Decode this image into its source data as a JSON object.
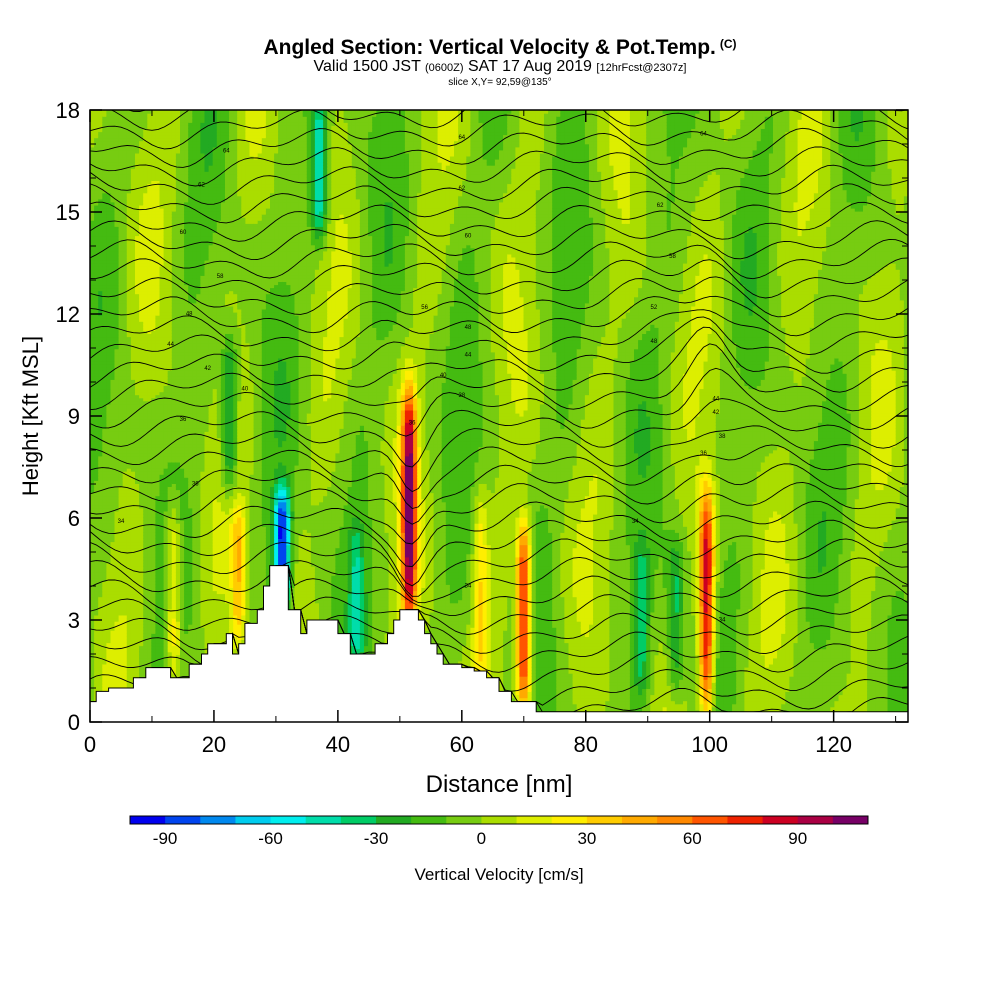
{
  "title": {
    "main": "Angled Section: Vertical Velocity & Pot.Temp.",
    "units_tag": "(C)",
    "valid_prefix": "Valid 1500 JST",
    "utc": "(0600Z)",
    "valid_date": "SAT 17 Aug 2019",
    "forecast": "[12hrFcst@2307z]",
    "slice": "slice X,Y= 92,59@135°"
  },
  "chart_data": {
    "type": "heatmap",
    "xlabel": "Distance [nm]",
    "ylabel": "Height [Kft MSL]",
    "xlim": [
      0,
      132
    ],
    "ylim": [
      0,
      18
    ],
    "x_ticks": [
      0,
      20,
      40,
      60,
      80,
      100,
      120
    ],
    "y_ticks": [
      0,
      3,
      6,
      9,
      12,
      15,
      18
    ],
    "colorbar": {
      "label": "Vertical Velocity [cm/s]",
      "min": -100,
      "max": 110,
      "step": 10,
      "tick_values": [
        -90,
        -60,
        -30,
        0,
        30,
        60,
        90
      ],
      "colors": [
        "#0000ee",
        "#0044ee",
        "#0088ee",
        "#00ccee",
        "#00eeee",
        "#00ddaa",
        "#00cc66",
        "#22aa22",
        "#44bb11",
        "#77cc11",
        "#aadd00",
        "#ddee00",
        "#ffee00",
        "#ffcc00",
        "#ffaa00",
        "#ff8800",
        "#ff5500",
        "#ee2200",
        "#cc0022",
        "#aa0044",
        "#770066"
      ]
    },
    "terrain_kft": [
      [
        0,
        0.6
      ],
      [
        1,
        0.9
      ],
      [
        3,
        1.0
      ],
      [
        5,
        1.0
      ],
      [
        7,
        1.3
      ],
      [
        9,
        1.6
      ],
      [
        12,
        1.6
      ],
      [
        13,
        1.3
      ],
      [
        15,
        1.3
      ],
      [
        16,
        1.7
      ],
      [
        18,
        2.0
      ],
      [
        19,
        2.3
      ],
      [
        21,
        2.3
      ],
      [
        22,
        2.6
      ],
      [
        23,
        2.0
      ],
      [
        24,
        2.3
      ],
      [
        25,
        2.9
      ],
      [
        27,
        3.3
      ],
      [
        28,
        4.0
      ],
      [
        29,
        4.6
      ],
      [
        31,
        4.6
      ],
      [
        32,
        3.3
      ],
      [
        34,
        2.6
      ],
      [
        35,
        3.0
      ],
      [
        38,
        3.0
      ],
      [
        40,
        2.6
      ],
      [
        42,
        2.0
      ],
      [
        45,
        2.0
      ],
      [
        46,
        2.3
      ],
      [
        48,
        2.6
      ],
      [
        49,
        3.0
      ],
      [
        50,
        3.3
      ],
      [
        52,
        3.3
      ],
      [
        53,
        3.0
      ],
      [
        54,
        2.6
      ],
      [
        55,
        2.3
      ],
      [
        56,
        2.0
      ],
      [
        57,
        1.7
      ],
      [
        59,
        1.7
      ],
      [
        60,
        1.6
      ],
      [
        62,
        1.5
      ],
      [
        64,
        1.3
      ],
      [
        66,
        0.9
      ],
      [
        68,
        0.6
      ],
      [
        70,
        0.6
      ],
      [
        72,
        0.3
      ],
      [
        75,
        0.3
      ],
      [
        132,
        0.3
      ]
    ],
    "updraft_cores_cm_s": [
      {
        "x": 51.5,
        "z_top": 9.5,
        "z_bottom": 3.3,
        "max": 100
      },
      {
        "x": 70.0,
        "z_top": 5.5,
        "z_bottom": 0.6,
        "max": 90
      },
      {
        "x": 99.5,
        "z_top": 6.5,
        "z_bottom": 0.3,
        "max": 90
      },
      {
        "x": 13.5,
        "z_top": 6.0,
        "z_bottom": 1.5,
        "max": 40
      },
      {
        "x": 24.0,
        "z_top": 6.0,
        "z_bottom": 2.5,
        "max": 40
      },
      {
        "x": 63.0,
        "z_top": 6.5,
        "z_bottom": 1.5,
        "max": 30
      }
    ],
    "downdraft_cores_cm_s": [
      {
        "x": 31.0,
        "z_top": 6.5,
        "z_bottom": 3.5,
        "min": -90
      },
      {
        "x": 37.0,
        "z_top": 18.0,
        "z_bottom": 14.5,
        "min": -50
      },
      {
        "x": 22.5,
        "z_top": 11.0,
        "z_bottom": 7.0,
        "min": -40
      },
      {
        "x": 89.0,
        "z_top": 5.0,
        "z_bottom": 1.0,
        "min": -30
      },
      {
        "x": 94.5,
        "z_top": 5.0,
        "z_bottom": 1.0,
        "min": -30
      },
      {
        "x": 43.0,
        "z_top": 5.5,
        "z_bottom": 2.0,
        "min": -30
      }
    ],
    "isentrope_labels_c": [
      {
        "x": 22,
        "z": 16.8,
        "text": "64"
      },
      {
        "x": 60,
        "z": 17.2,
        "text": "64"
      },
      {
        "x": 99,
        "z": 17.3,
        "text": "64"
      },
      {
        "x": 18,
        "z": 15.8,
        "text": "62"
      },
      {
        "x": 60,
        "z": 15.7,
        "text": "62"
      },
      {
        "x": 92,
        "z": 15.2,
        "text": "62"
      },
      {
        "x": 15,
        "z": 14.4,
        "text": "60"
      },
      {
        "x": 61,
        "z": 14.3,
        "text": "60"
      },
      {
        "x": 94,
        "z": 13.7,
        "text": "58"
      },
      {
        "x": 21,
        "z": 13.1,
        "text": "58"
      },
      {
        "x": 54,
        "z": 12.2,
        "text": "56"
      },
      {
        "x": 91,
        "z": 12.2,
        "text": "52"
      },
      {
        "x": 16,
        "z": 12.0,
        "text": "48"
      },
      {
        "x": 61,
        "z": 11.6,
        "text": "48"
      },
      {
        "x": 13,
        "z": 11.1,
        "text": "44"
      },
      {
        "x": 91,
        "z": 11.2,
        "text": "48"
      },
      {
        "x": 61,
        "z": 10.8,
        "text": "44"
      },
      {
        "x": 19,
        "z": 10.4,
        "text": "42"
      },
      {
        "x": 57,
        "z": 10.2,
        "text": "40"
      },
      {
        "x": 25,
        "z": 9.8,
        "text": "40"
      },
      {
        "x": 60,
        "z": 9.6,
        "text": "38"
      },
      {
        "x": 101,
        "z": 9.5,
        "text": "44"
      },
      {
        "x": 101,
        "z": 9.1,
        "text": "42"
      },
      {
        "x": 15,
        "z": 8.9,
        "text": "36"
      },
      {
        "x": 52,
        "z": 8.8,
        "text": "36"
      },
      {
        "x": 102,
        "z": 8.4,
        "text": "38"
      },
      {
        "x": 99,
        "z": 7.9,
        "text": "36"
      },
      {
        "x": 17,
        "z": 7.0,
        "text": "36"
      },
      {
        "x": 5,
        "z": 5.9,
        "text": "34"
      },
      {
        "x": 88,
        "z": 5.9,
        "text": "34"
      },
      {
        "x": 61,
        "z": 4.0,
        "text": "34"
      },
      {
        "x": 102,
        "z": 3.0,
        "text": "34"
      }
    ]
  }
}
